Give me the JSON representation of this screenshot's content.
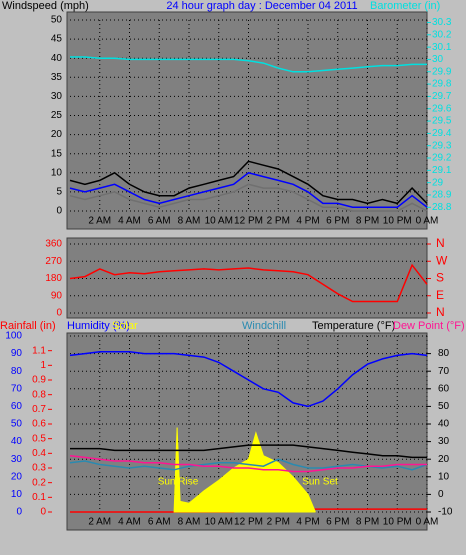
{
  "chart_data": [
    {
      "type": "line",
      "title": "24 hour graph day : December 04 2011",
      "y_label": "Windspeed (mph)",
      "y2_label": "Barometer (in)",
      "grid": true,
      "x": [
        0,
        1,
        2,
        3,
        4,
        5,
        6,
        7,
        8,
        9,
        10,
        11,
        12,
        13,
        14,
        15,
        16,
        17,
        18,
        19,
        20,
        21,
        22,
        23,
        24
      ],
      "xlim": [
        0,
        24
      ],
      "xticks": [
        {
          "value": 2,
          "label": "2 AM"
        },
        {
          "value": 4,
          "label": "4 AM"
        },
        {
          "value": 6,
          "label": "6 AM"
        },
        {
          "value": 8,
          "label": "8 AM"
        },
        {
          "value": 10,
          "label": "10 AM"
        },
        {
          "value": 12,
          "label": "12 PM"
        },
        {
          "value": 14,
          "label": "2 PM"
        },
        {
          "value": 16,
          "label": "4 PM"
        },
        {
          "value": 18,
          "label": "6 PM"
        },
        {
          "value": 20,
          "label": "8 PM"
        },
        {
          "value": 22,
          "label": "10 PM"
        },
        {
          "value": 24,
          "label": "0 AM"
        }
      ],
      "ylim": [
        0,
        50
      ],
      "yticks": [
        0,
        5,
        10,
        15,
        20,
        25,
        30,
        35,
        40,
        45,
        50
      ],
      "y2lim": [
        28.77,
        30.32
      ],
      "y2ticks": [
        28.8,
        28.9,
        29,
        29.1,
        29.2,
        29.3,
        29.4,
        29.5,
        29.6,
        29.7,
        29.8,
        29.9,
        30,
        30.1,
        30.2,
        30.3
      ],
      "tick_color": "#000000",
      "y2_tick_color": "#00e0e0",
      "series": [
        {
          "color": "#000000",
          "values": [
            8,
            7,
            8,
            10,
            7,
            5,
            4,
            4,
            6,
            7,
            8,
            9,
            13,
            12,
            11,
            9,
            7,
            4,
            3,
            3,
            2,
            3,
            2,
            6,
            2
          ]
        },
        {
          "color": "#707070",
          "values": [
            4,
            3,
            4,
            5,
            3,
            2,
            1,
            2,
            3,
            3,
            4,
            5,
            7,
            6,
            6,
            5,
            3,
            1,
            1,
            0,
            0,
            0,
            0,
            2,
            0
          ]
        },
        {
          "color": "#0000ff",
          "values": [
            6,
            5,
            6,
            7,
            5,
            3,
            2,
            3,
            4,
            5,
            6,
            7,
            10,
            9,
            8,
            7,
            5,
            2,
            2,
            1,
            1,
            1,
            1,
            4,
            1
          ]
        },
        {
          "color": "#00e0e0",
          "axis": "y2",
          "values": [
            30.02,
            30.02,
            30.01,
            30.01,
            30.0,
            30.0,
            30.0,
            30.0,
            30.0,
            30.0,
            30.0,
            30.0,
            29.99,
            29.97,
            29.93,
            29.9,
            29.9,
            29.91,
            29.92,
            29.93,
            29.94,
            29.95,
            29.95,
            29.96,
            29.96
          ]
        }
      ]
    },
    {
      "type": "line",
      "grid": true,
      "x": [
        0,
        1,
        2,
        3,
        4,
        5,
        6,
        7,
        8,
        9,
        10,
        11,
        12,
        13,
        14,
        15,
        16,
        17,
        18,
        19,
        20,
        21,
        22,
        23,
        24
      ],
      "xlim": [
        0,
        24
      ],
      "ylim": [
        0,
        360
      ],
      "yticks": [
        0,
        90,
        180,
        270,
        360
      ],
      "y2lim": [
        0,
        360
      ],
      "y2ticks": [
        {
          "value": 0,
          "label": "N"
        },
        {
          "value": 90,
          "label": "E"
        },
        {
          "value": 180,
          "label": "S"
        },
        {
          "value": 270,
          "label": "W"
        },
        {
          "value": 360,
          "label": "N"
        }
      ],
      "tick_color": "#ff0000",
      "y2_tick_color": "#ff0000",
      "series": [
        {
          "color": "#ff0000",
          "values": [
            180,
            190,
            230,
            200,
            210,
            205,
            215,
            220,
            225,
            230,
            225,
            230,
            235,
            225,
            220,
            215,
            200,
            150,
            100,
            60,
            60,
            60,
            60,
            250,
            150
          ]
        }
      ]
    },
    {
      "type": "line",
      "grid": true,
      "x": [
        0,
        1,
        2,
        3,
        4,
        5,
        6,
        7,
        8,
        9,
        10,
        11,
        12,
        13,
        14,
        15,
        16,
        17,
        18,
        19,
        20,
        21,
        22,
        23,
        24
      ],
      "xlim": [
        0,
        24
      ],
      "xticks": [
        {
          "value": 2,
          "label": "2 AM"
        },
        {
          "value": 4,
          "label": "4 AM"
        },
        {
          "value": 6,
          "label": "6 AM"
        },
        {
          "value": 8,
          "label": "8 AM"
        },
        {
          "value": 10,
          "label": "10 AM"
        },
        {
          "value": 12,
          "label": "12 PM"
        },
        {
          "value": 14,
          "label": "2 PM"
        },
        {
          "value": 16,
          "label": "4 PM"
        },
        {
          "value": 18,
          "label": "6 PM"
        },
        {
          "value": 20,
          "label": "8 PM"
        },
        {
          "value": 22,
          "label": "10 PM"
        },
        {
          "value": 24,
          "label": "0 AM"
        }
      ],
      "ylim": [
        0,
        100
      ],
      "yticks": [
        0,
        10,
        20,
        30,
        40,
        50,
        60,
        70,
        80,
        90,
        100
      ],
      "y3lim": [
        0,
        1.2
      ],
      "y3ticks": [
        0,
        0.1,
        0.2,
        0.3,
        0.4,
        0.5,
        0.6,
        0.7,
        0.8,
        0.9,
        1,
        1.1
      ],
      "y2lim": [
        -10,
        90
      ],
      "y2ticks": [
        -10,
        0,
        10,
        20,
        30,
        40,
        50,
        60,
        70,
        80
      ],
      "tick_color": "#0000ff",
      "y3_tick_color": "#ff0000",
      "y2_tick_color": "#000000",
      "annotations": [
        "Sun Rise",
        "Sun Set"
      ],
      "annotation_color": "#ffff00",
      "series": [
        {
          "name": "Rainfall (in)",
          "color": "#ff0000",
          "axis": "y3",
          "values": [
            0,
            0,
            0,
            0,
            0,
            0,
            0,
            0,
            0,
            0,
            0,
            0,
            0.02,
            0.02,
            0.02,
            0.02,
            0.02,
            0.02,
            0.02,
            0.02,
            0.02,
            0.02,
            0.02,
            0.02,
            0.02
          ]
        },
        {
          "name": "Humidity (%)",
          "color": "#0000ff",
          "values": [
            89,
            90,
            91,
            91,
            91,
            90,
            90,
            90,
            89,
            88,
            85,
            80,
            75,
            70,
            68,
            62,
            60,
            63,
            70,
            78,
            84,
            87,
            89,
            90,
            89
          ]
        },
        {
          "name": "Solar",
          "color": "#ffff00",
          "kind": "area",
          "x": [
            7,
            7.2,
            7.4,
            8,
            9,
            10,
            11,
            12,
            12.5,
            13,
            14,
            15,
            16,
            16.5
          ],
          "values": [
            0,
            48,
            6,
            5,
            12,
            18,
            25,
            30,
            45,
            32,
            28,
            20,
            10,
            0
          ]
        },
        {
          "name": "Windchill",
          "color": "#2a8ab0",
          "axis": "y2",
          "values": [
            18,
            19,
            17,
            16,
            15,
            16,
            15,
            14,
            16,
            17,
            18,
            18,
            17,
            16,
            20,
            17,
            15,
            15,
            16,
            17,
            16,
            15,
            16,
            14,
            17
          ]
        },
        {
          "name": "Temperature (°F)",
          "color": "#000000",
          "axis": "y2",
          "values": [
            26,
            26,
            26,
            25,
            25,
            25,
            25,
            25,
            25,
            25,
            26,
            27,
            28,
            28,
            28,
            28,
            27,
            26,
            25,
            24,
            23,
            22,
            22,
            21,
            21
          ]
        },
        {
          "name": "Dew Point (°F)",
          "color": "#ff1493",
          "axis": "y2",
          "values": [
            22,
            21,
            20,
            19,
            19,
            18,
            18,
            17,
            17,
            16,
            16,
            15,
            15,
            14,
            14,
            13,
            13,
            14,
            15,
            15,
            16,
            16,
            17,
            17,
            17
          ]
        }
      ]
    }
  ]
}
